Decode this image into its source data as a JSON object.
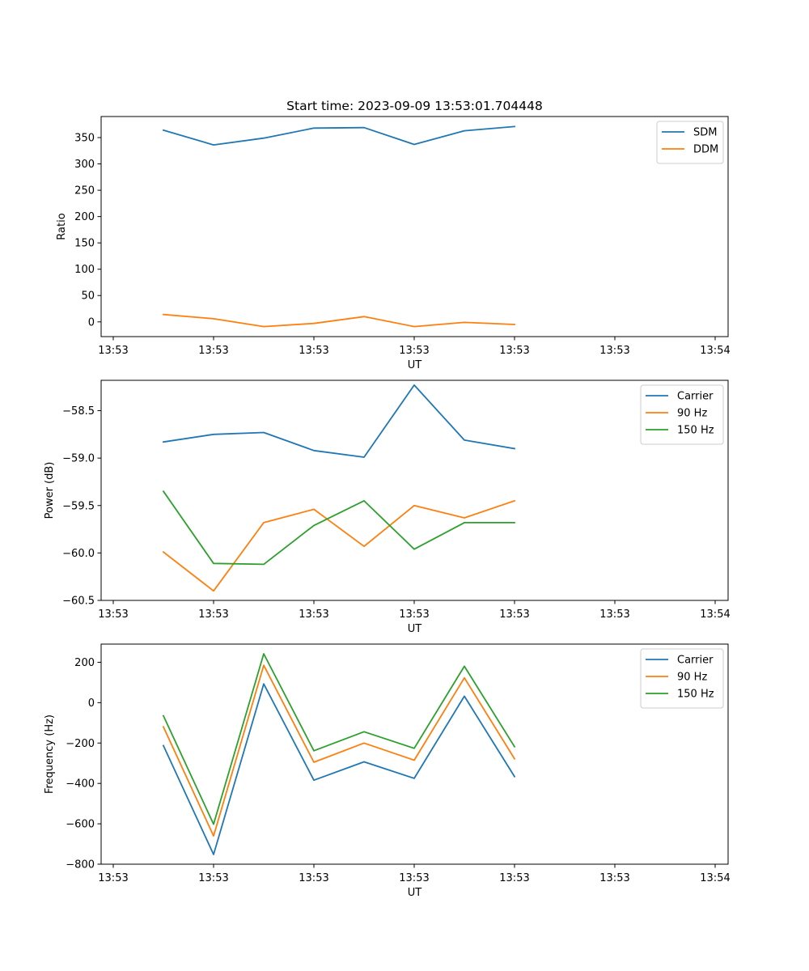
{
  "title": "Start time: 2023-09-09 13:53:01.704448",
  "colors": {
    "blue": "#1f77b4",
    "orange": "#ff7f0e",
    "green": "#2ca02c"
  },
  "chart_data": [
    {
      "type": "line",
      "title": "Start time: 2023-09-09 13:53:01.704448",
      "xlabel": "UT",
      "ylabel": "Ratio",
      "x": [
        0.5,
        1.0,
        1.5,
        2.0,
        2.5,
        3.0,
        3.5,
        4.0
      ],
      "xlim": [
        0,
        6
      ],
      "xticks": [
        0,
        1,
        2,
        3,
        4,
        5,
        6
      ],
      "xticklabels": [
        "13:53",
        "13:53",
        "13:53",
        "13:53",
        "13:53",
        "13:53",
        "13:54"
      ],
      "ylim": [
        -28,
        390
      ],
      "yticks": [
        0,
        50,
        100,
        150,
        200,
        250,
        300,
        350
      ],
      "yticklabels": [
        "0",
        "50",
        "100",
        "150",
        "200",
        "250",
        "300",
        "350"
      ],
      "legend": "top-right",
      "series": [
        {
          "name": "SDM",
          "color": "#1f77b4",
          "values": [
            364,
            336,
            349,
            368,
            369,
            337,
            363,
            371
          ]
        },
        {
          "name": "DDM",
          "color": "#ff7f0e",
          "values": [
            14,
            6,
            -9,
            -3,
            10,
            -9,
            -1,
            -5
          ]
        }
      ]
    },
    {
      "type": "line",
      "xlabel": "UT",
      "ylabel": "Power (dB)",
      "x": [
        0.5,
        1.0,
        1.5,
        2.0,
        2.5,
        3.0,
        3.5,
        4.0
      ],
      "xlim": [
        0,
        6
      ],
      "xticks": [
        0,
        1,
        2,
        3,
        4,
        5,
        6
      ],
      "xticklabels": [
        "13:53",
        "13:53",
        "13:53",
        "13:53",
        "13:53",
        "13:53",
        "13:54"
      ],
      "ylim": [
        -60.5,
        -58.18
      ],
      "yticks": [
        -60.5,
        -60.0,
        -59.5,
        -59.0,
        -58.5
      ],
      "yticklabels": [
        "−60.5",
        "−60.0",
        "−59.5",
        "−59.0",
        "−58.5"
      ],
      "legend": "top-right",
      "series": [
        {
          "name": "Carrier",
          "color": "#1f77b4",
          "values": [
            -58.83,
            -58.75,
            -58.73,
            -58.92,
            -58.99,
            -58.23,
            -58.81,
            -58.9
          ]
        },
        {
          "name": "90 Hz",
          "color": "#ff7f0e",
          "values": [
            -59.99,
            -60.4,
            -59.68,
            -59.54,
            -59.93,
            -59.5,
            -59.63,
            -59.45
          ]
        },
        {
          "name": "150 Hz",
          "color": "#2ca02c",
          "values": [
            -59.35,
            -60.11,
            -60.12,
            -59.71,
            -59.45,
            -59.96,
            -59.68,
            -59.68
          ]
        }
      ]
    },
    {
      "type": "line",
      "xlabel": "UT",
      "ylabel": "Frequency (Hz)",
      "x": [
        0.5,
        1.0,
        1.5,
        2.0,
        2.5,
        3.0,
        3.5,
        4.0
      ],
      "xlim": [
        0,
        6
      ],
      "xticks": [
        0,
        1,
        2,
        3,
        4,
        5,
        6
      ],
      "xticklabels": [
        "13:53",
        "13:53",
        "13:53",
        "13:53",
        "13:53",
        "13:53",
        "13:54"
      ],
      "ylim": [
        -800,
        290
      ],
      "yticks": [
        -800,
        -600,
        -400,
        -200,
        0,
        200
      ],
      "yticklabels": [
        "−800",
        "−600",
        "−400",
        "−200",
        "0",
        "200"
      ],
      "legend": "top-right",
      "series": [
        {
          "name": "Carrier",
          "color": "#1f77b4",
          "values": [
            -213,
            -752,
            93,
            -384,
            -293,
            -375,
            32,
            -366
          ]
        },
        {
          "name": "90 Hz",
          "color": "#ff7f0e",
          "values": [
            -120,
            -660,
            185,
            -295,
            -200,
            -285,
            123,
            -278
          ]
        },
        {
          "name": "150 Hz",
          "color": "#2ca02c",
          "values": [
            -65,
            -602,
            242,
            -238,
            -144,
            -226,
            180,
            -218
          ]
        }
      ]
    }
  ]
}
